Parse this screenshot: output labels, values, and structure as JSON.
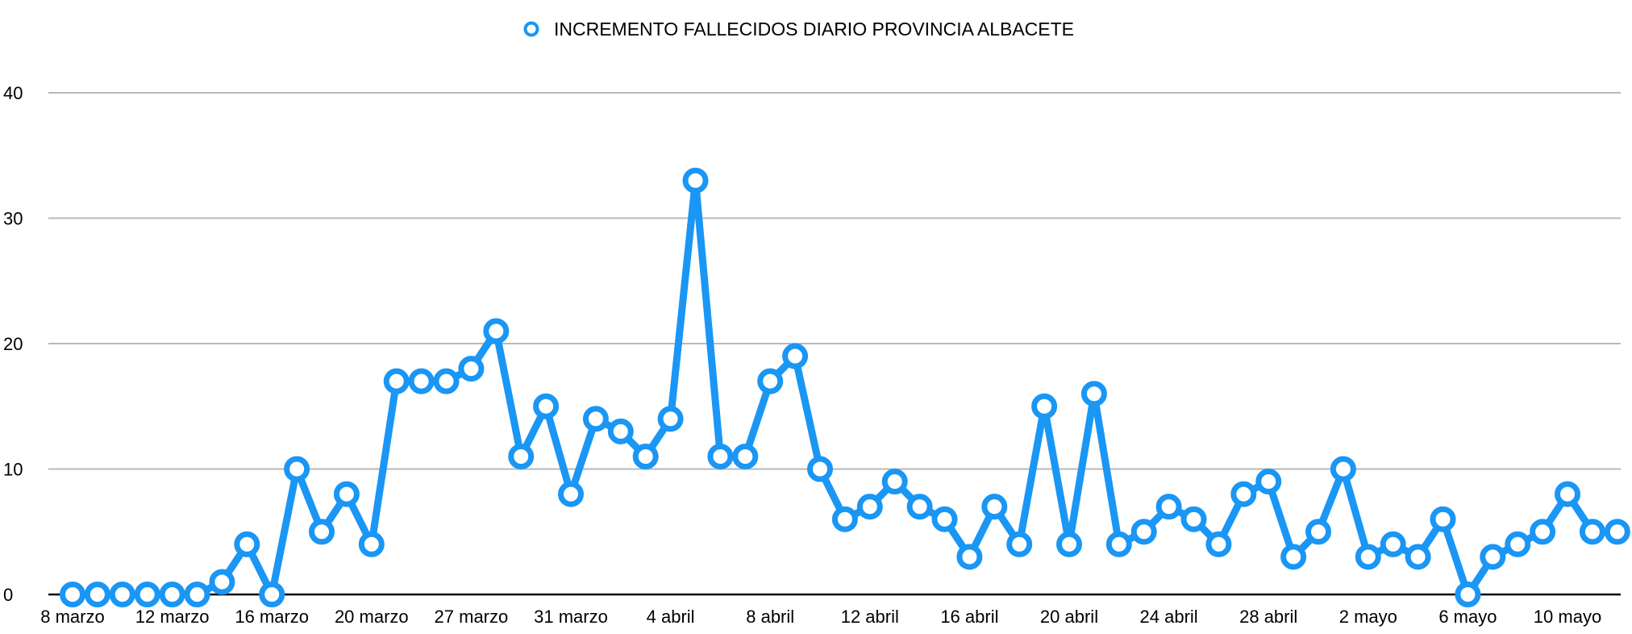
{
  "chart_data": {
    "type": "line",
    "title": "",
    "xlabel": "",
    "ylabel": "",
    "ylim": [
      0,
      40
    ],
    "yticks": [
      0,
      10,
      20,
      30,
      40
    ],
    "grid": "horizontal",
    "legend_position": "top-center",
    "x_tick_labels": [
      "8 marzo",
      "12 marzo",
      "16 marzo",
      "20 marzo",
      "27 marzo",
      "31 marzo",
      "4 abril",
      "8 abril",
      "12 abril",
      "16 abril",
      "20 abril",
      "24 abril",
      "28 abril",
      "2 mayo",
      "6 mayo",
      "10 mayo"
    ],
    "series": [
      {
        "name": "INCREMENTO FALLECIDOS DIARIO PROVINCIA ALBACETE",
        "color": "#1a96f5",
        "values": [
          0,
          0,
          0,
          0,
          0,
          0,
          1,
          4,
          0,
          10,
          5,
          8,
          4,
          17,
          17,
          17,
          18,
          21,
          11,
          15,
          8,
          14,
          13,
          11,
          14,
          33,
          11,
          11,
          17,
          19,
          10,
          6,
          7,
          9,
          7,
          6,
          3,
          7,
          4,
          15,
          4,
          16,
          4,
          5,
          7,
          6,
          4,
          8,
          9,
          3,
          5,
          10,
          3,
          4,
          3,
          6,
          0,
          3,
          4,
          5,
          8,
          5,
          5
        ]
      }
    ]
  }
}
